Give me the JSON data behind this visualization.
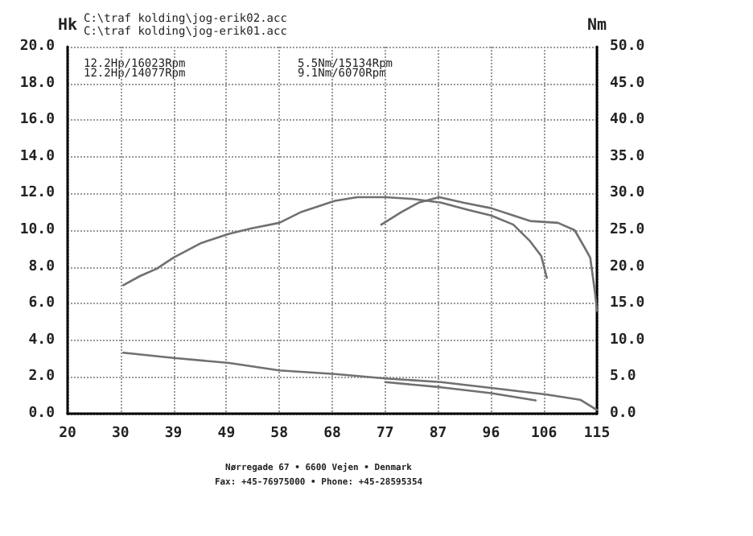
{
  "chart_data": {
    "type": "line",
    "ylabel": "Hk",
    "y2label": "Nm",
    "annotations": [
      "C:\\traf kolding\\jog-erik02.acc",
      "C:\\traf kolding\\jog-erik01.acc",
      "12.2Hp/16023Rpm",
      "5.5Nm/15134Rpm",
      "12.2Hp/14077Rpm",
      "9.1Nm/6070Rpm",
      "Nørregade 67 • 6600 Vejen • Denmark",
      "Fax: +45-76975000 • Phone: +45-28595354"
    ],
    "xlim": [
      20,
      115
    ],
    "xticks": [
      20,
      {
        "value": 29.5,
        "label": "30"
      },
      39,
      {
        "value": 48.5,
        "label": "49"
      },
      58,
      {
        "value": 67.5,
        "label": "68"
      },
      77,
      {
        "value": 86.5,
        "label": "87"
      },
      96,
      {
        "value": 105.5,
        "label": "106"
      },
      115
    ],
    "ylim": [
      0,
      20
    ],
    "yticks": [
      {
        "value": 0,
        "label": "0.0"
      },
      {
        "value": 2,
        "label": "2.0"
      },
      {
        "value": 4,
        "label": "4.0"
      },
      {
        "value": 6,
        "label": "6.0"
      },
      {
        "value": 8,
        "label": "8.0"
      },
      {
        "value": 10,
        "label": "10.0"
      },
      {
        "value": 12,
        "label": "12.0"
      },
      {
        "value": 14,
        "label": "14.0"
      },
      {
        "value": 16,
        "label": "16.0"
      },
      {
        "value": 18,
        "label": "18.0"
      },
      {
        "value": 20,
        "label": "20.0"
      }
    ],
    "y2lim": [
      0,
      50
    ],
    "y2ticks": [
      {
        "value": 0,
        "label": "0.0"
      },
      {
        "value": 5,
        "label": "5.0"
      },
      {
        "value": 10,
        "label": "10.0"
      },
      {
        "value": 15,
        "label": "15.0"
      },
      {
        "value": 20,
        "label": "20.0"
      },
      {
        "value": 25,
        "label": "25.0"
      },
      {
        "value": 30,
        "label": "30.0"
      },
      {
        "value": 35,
        "label": "35.0"
      },
      {
        "value": 40,
        "label": "40.0"
      },
      {
        "value": 45,
        "label": "45.0"
      },
      {
        "value": 50,
        "label": "50.0"
      }
    ],
    "grid": true,
    "marker": "none",
    "line_style": "solid",
    "series": [
      {
        "color": "#707070",
        "x": [
          30,
          33,
          36,
          39,
          44,
          49,
          53,
          58,
          62,
          68,
          72,
          77,
          82,
          87,
          92,
          96,
          100,
          103,
          105,
          106
        ],
        "values": [
          7.0,
          7.5,
          7.9,
          8.5,
          9.3,
          9.8,
          10.1,
          10.4,
          11.0,
          11.6,
          11.8,
          11.8,
          11.7,
          11.5,
          11.1,
          10.8,
          10.3,
          9.4,
          8.6,
          7.4
        ]
      },
      {
        "color": "#707070",
        "x": [
          76.3,
          80,
          83,
          86.7,
          91,
          96,
          100,
          103,
          108,
          111,
          112.7,
          113.8,
          114.7,
          115
        ],
        "values": [
          10.3,
          11.0,
          11.5,
          11.8,
          11.5,
          11.2,
          10.8,
          10.5,
          10.4,
          10.0,
          9.1,
          8.5,
          6.5,
          5.6
        ]
      },
      {
        "color": "#707070",
        "axis": "y2",
        "x": [
          30,
          39,
          49,
          58,
          68,
          77,
          87,
          96,
          106,
          112,
          115
        ],
        "values": [
          8.3,
          7.6,
          6.9,
          5.9,
          5.4,
          4.8,
          4.3,
          3.5,
          2.6,
          1.9,
          0.5
        ]
      },
      {
        "color": "#707070",
        "axis": "y2",
        "x": [
          77,
          87,
          96,
          104
        ],
        "values": [
          4.3,
          3.6,
          2.8,
          1.8
        ]
      }
    ]
  }
}
